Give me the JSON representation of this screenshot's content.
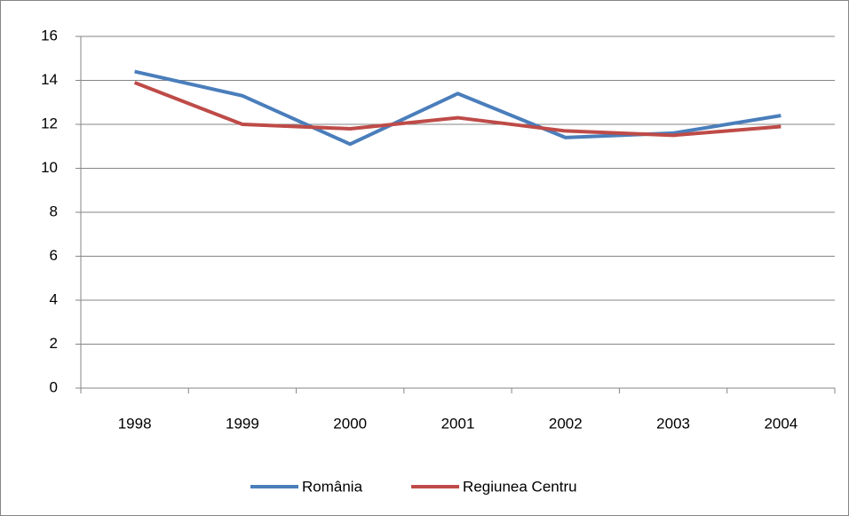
{
  "chart_data": {
    "type": "line",
    "categories": [
      "1998",
      "1999",
      "2000",
      "2001",
      "2002",
      "2003",
      "2004"
    ],
    "series": [
      {
        "name": "România",
        "color": "#4a7ebb",
        "values": [
          14.4,
          13.3,
          11.1,
          13.4,
          11.4,
          11.6,
          12.4
        ]
      },
      {
        "name": "Regiunea Centru",
        "color": "#be4b48",
        "values": [
          13.9,
          12.0,
          11.8,
          12.3,
          11.7,
          11.5,
          11.9
        ]
      }
    ],
    "ylim": [
      0,
      16
    ],
    "yticks": [
      0,
      2,
      4,
      6,
      8,
      10,
      12,
      14,
      16
    ],
    "grid": true,
    "legend": "bottom"
  }
}
